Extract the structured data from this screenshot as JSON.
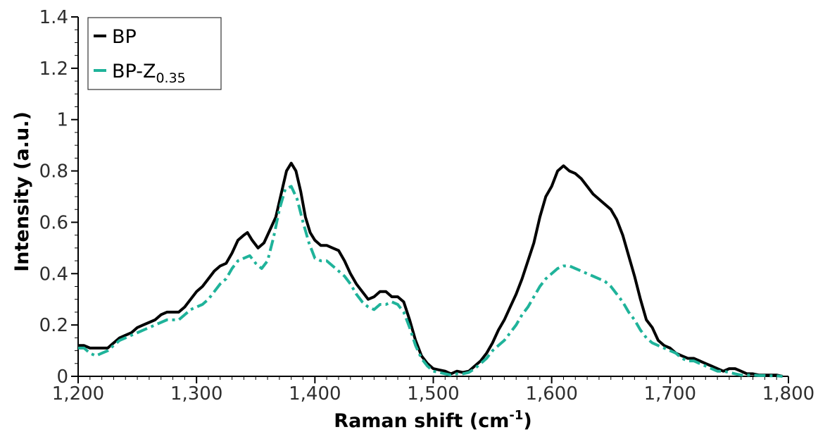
{
  "chart_data": {
    "type": "line",
    "title": "",
    "xlabel": "Raman shift (cm",
    "xlabel_sup": "-1",
    "xlabel_tail": ")",
    "ylabel": "Intensity (a.u.)",
    "xlim": [
      1200,
      1800
    ],
    "ylim": [
      0,
      1.4
    ],
    "x_ticks": [
      1200,
      1300,
      1400,
      1500,
      1600,
      1700,
      1800
    ],
    "x_tick_labels": [
      "1,200",
      "1,300",
      "1,400",
      "1,500",
      "1,600",
      "1,700",
      "1,800"
    ],
    "y_ticks": [
      0,
      0.2,
      0.4,
      0.6,
      0.8,
      1,
      1.2,
      1.4
    ],
    "y_tick_labels": [
      "0",
      "0.2",
      "0.4",
      "0.6",
      "0.8",
      "1",
      "1.2",
      "1.4"
    ],
    "grid": false,
    "legend_position": "top-left",
    "series": [
      {
        "name": "BP",
        "color": "#000000",
        "line_style": "solid",
        "points": [
          [
            1200,
            0.12
          ],
          [
            1205,
            0.12
          ],
          [
            1210,
            0.11
          ],
          [
            1215,
            0.11
          ],
          [
            1220,
            0.11
          ],
          [
            1225,
            0.11
          ],
          [
            1230,
            0.13
          ],
          [
            1235,
            0.15
          ],
          [
            1240,
            0.16
          ],
          [
            1245,
            0.17
          ],
          [
            1250,
            0.19
          ],
          [
            1255,
            0.2
          ],
          [
            1260,
            0.21
          ],
          [
            1265,
            0.22
          ],
          [
            1270,
            0.24
          ],
          [
            1275,
            0.25
          ],
          [
            1280,
            0.25
          ],
          [
            1285,
            0.25
          ],
          [
            1290,
            0.27
          ],
          [
            1295,
            0.3
          ],
          [
            1300,
            0.33
          ],
          [
            1305,
            0.35
          ],
          [
            1310,
            0.38
          ],
          [
            1315,
            0.41
          ],
          [
            1320,
            0.43
          ],
          [
            1325,
            0.44
          ],
          [
            1330,
            0.48
          ],
          [
            1335,
            0.53
          ],
          [
            1340,
            0.55
          ],
          [
            1343,
            0.56
          ],
          [
            1347,
            0.53
          ],
          [
            1352,
            0.5
          ],
          [
            1357,
            0.52
          ],
          [
            1362,
            0.57
          ],
          [
            1367,
            0.62
          ],
          [
            1372,
            0.72
          ],
          [
            1376,
            0.8
          ],
          [
            1380,
            0.83
          ],
          [
            1384,
            0.8
          ],
          [
            1388,
            0.72
          ],
          [
            1392,
            0.62
          ],
          [
            1396,
            0.56
          ],
          [
            1400,
            0.53
          ],
          [
            1405,
            0.51
          ],
          [
            1410,
            0.51
          ],
          [
            1415,
            0.5
          ],
          [
            1420,
            0.49
          ],
          [
            1425,
            0.45
          ],
          [
            1430,
            0.4
          ],
          [
            1435,
            0.36
          ],
          [
            1440,
            0.33
          ],
          [
            1445,
            0.3
          ],
          [
            1450,
            0.31
          ],
          [
            1455,
            0.33
          ],
          [
            1460,
            0.33
          ],
          [
            1465,
            0.31
          ],
          [
            1470,
            0.31
          ],
          [
            1475,
            0.29
          ],
          [
            1480,
            0.22
          ],
          [
            1485,
            0.14
          ],
          [
            1490,
            0.08
          ],
          [
            1495,
            0.05
          ],
          [
            1500,
            0.03
          ],
          [
            1505,
            0.025
          ],
          [
            1510,
            0.02
          ],
          [
            1515,
            0.01
          ],
          [
            1520,
            0.02
          ],
          [
            1525,
            0.015
          ],
          [
            1530,
            0.02
          ],
          [
            1535,
            0.04
          ],
          [
            1540,
            0.06
          ],
          [
            1545,
            0.09
          ],
          [
            1550,
            0.13
          ],
          [
            1555,
            0.18
          ],
          [
            1560,
            0.22
          ],
          [
            1565,
            0.27
          ],
          [
            1570,
            0.32
          ],
          [
            1575,
            0.38
          ],
          [
            1580,
            0.45
          ],
          [
            1585,
            0.52
          ],
          [
            1590,
            0.62
          ],
          [
            1595,
            0.7
          ],
          [
            1600,
            0.74
          ],
          [
            1605,
            0.8
          ],
          [
            1610,
            0.82
          ],
          [
            1615,
            0.8
          ],
          [
            1620,
            0.79
          ],
          [
            1625,
            0.77
          ],
          [
            1630,
            0.74
          ],
          [
            1635,
            0.71
          ],
          [
            1640,
            0.69
          ],
          [
            1645,
            0.67
          ],
          [
            1650,
            0.65
          ],
          [
            1655,
            0.61
          ],
          [
            1660,
            0.55
          ],
          [
            1665,
            0.47
          ],
          [
            1670,
            0.39
          ],
          [
            1675,
            0.3
          ],
          [
            1680,
            0.22
          ],
          [
            1685,
            0.19
          ],
          [
            1690,
            0.14
          ],
          [
            1695,
            0.12
          ],
          [
            1700,
            0.11
          ],
          [
            1705,
            0.09
          ],
          [
            1710,
            0.08
          ],
          [
            1715,
            0.07
          ],
          [
            1720,
            0.07
          ],
          [
            1725,
            0.06
          ],
          [
            1730,
            0.05
          ],
          [
            1735,
            0.04
          ],
          [
            1740,
            0.03
          ],
          [
            1745,
            0.02
          ],
          [
            1750,
            0.03
          ],
          [
            1755,
            0.03
          ],
          [
            1760,
            0.02
          ],
          [
            1765,
            0.01
          ],
          [
            1770,
            0.01
          ],
          [
            1775,
            0.005
          ],
          [
            1780,
            0.005
          ],
          [
            1785,
            0.005
          ],
          [
            1790,
            0.005
          ],
          [
            1795,
            0.0
          ]
        ]
      },
      {
        "name": "BP-Z",
        "name_sub": "0.35",
        "color": "#1fb39a",
        "line_style": "dash-dot",
        "points": [
          [
            1200,
            0.11
          ],
          [
            1205,
            0.11
          ],
          [
            1210,
            0.09
          ],
          [
            1215,
            0.08
          ],
          [
            1220,
            0.09
          ],
          [
            1225,
            0.1
          ],
          [
            1230,
            0.12
          ],
          [
            1235,
            0.14
          ],
          [
            1240,
            0.15
          ],
          [
            1245,
            0.16
          ],
          [
            1250,
            0.17
          ],
          [
            1255,
            0.18
          ],
          [
            1260,
            0.19
          ],
          [
            1265,
            0.2
          ],
          [
            1270,
            0.21
          ],
          [
            1275,
            0.22
          ],
          [
            1280,
            0.22
          ],
          [
            1285,
            0.22
          ],
          [
            1290,
            0.24
          ],
          [
            1295,
            0.26
          ],
          [
            1300,
            0.27
          ],
          [
            1305,
            0.28
          ],
          [
            1310,
            0.3
          ],
          [
            1315,
            0.33
          ],
          [
            1320,
            0.36
          ],
          [
            1325,
            0.38
          ],
          [
            1330,
            0.42
          ],
          [
            1335,
            0.45
          ],
          [
            1340,
            0.46
          ],
          [
            1345,
            0.47
          ],
          [
            1350,
            0.44
          ],
          [
            1355,
            0.42
          ],
          [
            1360,
            0.45
          ],
          [
            1365,
            0.54
          ],
          [
            1370,
            0.65
          ],
          [
            1375,
            0.73
          ],
          [
            1380,
            0.74
          ],
          [
            1385,
            0.69
          ],
          [
            1390,
            0.6
          ],
          [
            1395,
            0.52
          ],
          [
            1400,
            0.46
          ],
          [
            1405,
            0.45
          ],
          [
            1410,
            0.45
          ],
          [
            1415,
            0.43
          ],
          [
            1420,
            0.41
          ],
          [
            1425,
            0.39
          ],
          [
            1430,
            0.36
          ],
          [
            1435,
            0.32
          ],
          [
            1440,
            0.29
          ],
          [
            1445,
            0.27
          ],
          [
            1450,
            0.26
          ],
          [
            1455,
            0.28
          ],
          [
            1460,
            0.28
          ],
          [
            1465,
            0.29
          ],
          [
            1470,
            0.28
          ],
          [
            1475,
            0.25
          ],
          [
            1480,
            0.19
          ],
          [
            1485,
            0.12
          ],
          [
            1490,
            0.07
          ],
          [
            1495,
            0.04
          ],
          [
            1500,
            0.02
          ],
          [
            1505,
            0.015
          ],
          [
            1510,
            0.01
          ],
          [
            1515,
            0.005
          ],
          [
            1520,
            0.01
          ],
          [
            1525,
            0.01
          ],
          [
            1530,
            0.015
          ],
          [
            1535,
            0.03
          ],
          [
            1540,
            0.05
          ],
          [
            1545,
            0.07
          ],
          [
            1550,
            0.1
          ],
          [
            1555,
            0.12
          ],
          [
            1560,
            0.14
          ],
          [
            1565,
            0.17
          ],
          [
            1570,
            0.2
          ],
          [
            1575,
            0.24
          ],
          [
            1580,
            0.27
          ],
          [
            1585,
            0.31
          ],
          [
            1590,
            0.35
          ],
          [
            1595,
            0.38
          ],
          [
            1600,
            0.4
          ],
          [
            1605,
            0.42
          ],
          [
            1610,
            0.43
          ],
          [
            1615,
            0.43
          ],
          [
            1620,
            0.42
          ],
          [
            1625,
            0.41
          ],
          [
            1630,
            0.4
          ],
          [
            1635,
            0.39
          ],
          [
            1640,
            0.38
          ],
          [
            1645,
            0.37
          ],
          [
            1650,
            0.35
          ],
          [
            1655,
            0.32
          ],
          [
            1660,
            0.29
          ],
          [
            1665,
            0.25
          ],
          [
            1670,
            0.22
          ],
          [
            1675,
            0.18
          ],
          [
            1680,
            0.15
          ],
          [
            1685,
            0.13
          ],
          [
            1690,
            0.12
          ],
          [
            1695,
            0.11
          ],
          [
            1700,
            0.1
          ],
          [
            1705,
            0.09
          ],
          [
            1710,
            0.07
          ],
          [
            1715,
            0.06
          ],
          [
            1720,
            0.06
          ],
          [
            1725,
            0.05
          ],
          [
            1730,
            0.04
          ],
          [
            1735,
            0.03
          ],
          [
            1740,
            0.02
          ],
          [
            1745,
            0.02
          ],
          [
            1750,
            0.015
          ],
          [
            1755,
            0.01
          ],
          [
            1760,
            0.005
          ],
          [
            1765,
            0.005
          ],
          [
            1770,
            0.005
          ],
          [
            1775,
            0.003
          ],
          [
            1780,
            0.003
          ],
          [
            1785,
            0.002
          ],
          [
            1790,
            0.002
          ],
          [
            1795,
            0.0
          ]
        ]
      }
    ]
  }
}
